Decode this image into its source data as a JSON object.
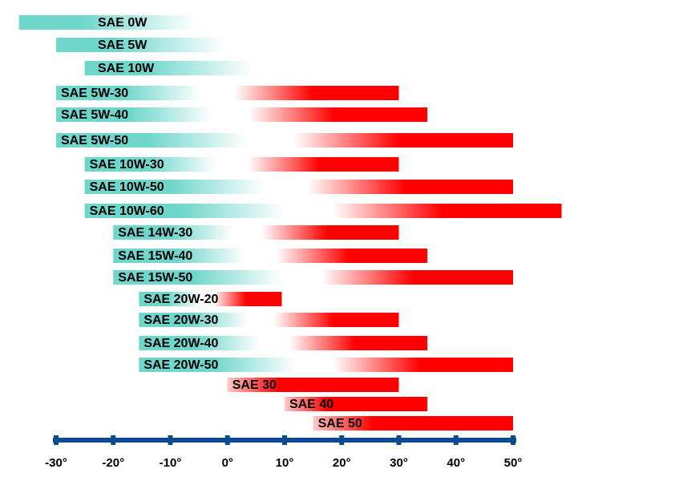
{
  "chart_data": {
    "type": "range-bar",
    "categories": [
      "SAE 0W",
      "SAE 5W",
      "SAE 10W",
      "SAE 5W-30",
      "SAE 5W-40",
      "SAE 5W-50",
      "SAE 10W-30",
      "SAE 10W-50",
      "SAE 10W-60",
      "SAE 14W-30",
      "SAE 15W-40",
      "SAE 15W-50",
      "SAE 20W-20",
      "SAE 20W-30",
      "SAE 20W-40",
      "SAE 20W-50",
      "SAE 30",
      "SAE 40",
      "SAE 50"
    ],
    "ranges": [
      [
        -36.5,
        -5.5
      ],
      [
        -30,
        -0.5
      ],
      [
        -25,
        4.5
      ],
      [
        -30,
        30
      ],
      [
        -30,
        35
      ],
      [
        -30,
        50
      ],
      [
        -25,
        30
      ],
      [
        -25,
        50
      ],
      [
        -25,
        58.5
      ],
      [
        -20,
        30
      ],
      [
        -20,
        35
      ],
      [
        -20,
        50
      ],
      [
        -15.5,
        9.5
      ],
      [
        -15.5,
        30
      ],
      [
        -15.5,
        35
      ],
      [
        -15.5,
        50
      ],
      [
        0,
        30
      ],
      [
        10,
        35
      ],
      [
        15,
        50
      ]
    ],
    "cold_color": "#6ed6cb",
    "hot_color": "#ff0000",
    "summer_start_color": "#ffc8c8",
    "axis_color": "#0a4a8f",
    "xlim": [
      -30,
      50
    ],
    "xticks": [
      {
        "value": -30,
        "label": "-30°"
      },
      {
        "value": -20,
        "label": "-20°"
      },
      {
        "value": -10,
        "label": "-10°"
      },
      {
        "value": 0,
        "label": "0°"
      },
      {
        "value": 10,
        "label": "10°"
      },
      {
        "value": 20,
        "label": "20°"
      },
      {
        "value": 30,
        "label": "30°"
      },
      {
        "value": 40,
        "label": "40°"
      },
      {
        "value": 50,
        "label": "50°"
      }
    ]
  }
}
